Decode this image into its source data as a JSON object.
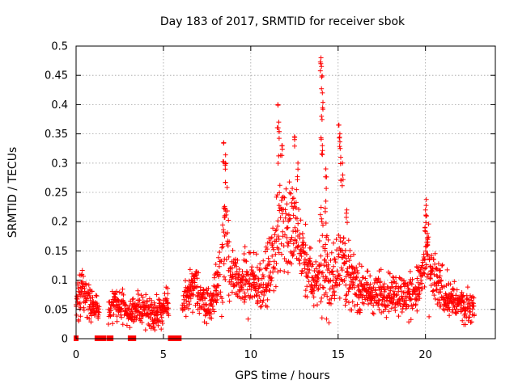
{
  "chart_data": {
    "type": "scatter",
    "title": "Day 183 of 2017, SRMTID for receiver sbok",
    "xlabel": "GPS time / hours",
    "ylabel": "SRMTID / TECUs",
    "xlim": [
      0,
      24
    ],
    "ylim": [
      0,
      0.5
    ],
    "xticks": [
      "0",
      "5",
      "10",
      "15",
      "20"
    ],
    "yticks": [
      "0",
      "0.05",
      "0.1",
      "0.15",
      "0.2",
      "0.25",
      "0.3",
      "0.35",
      "0.4",
      "0.45",
      "0.5"
    ],
    "grid": true,
    "marker": "+",
    "color": "#ff0000",
    "series": [
      {
        "name": "SRMTID",
        "envelope": [
          [
            0.0,
            0.055,
            0.03
          ],
          [
            0.2,
            0.07,
            0.04
          ],
          [
            0.35,
            0.09,
            0.05
          ],
          [
            0.5,
            0.08,
            0.04
          ],
          [
            0.8,
            0.06,
            0.03
          ],
          [
            1.1,
            0.055,
            0.03
          ],
          [
            1.3,
            0.05,
            0.02
          ],
          [
            1.9,
            0.05,
            0.025
          ],
          [
            2.3,
            0.055,
            0.03
          ],
          [
            2.8,
            0.05,
            0.03
          ],
          [
            3.1,
            0.045,
            0.025
          ],
          [
            3.5,
            0.05,
            0.03
          ],
          [
            3.9,
            0.05,
            0.03
          ],
          [
            4.4,
            0.045,
            0.03
          ],
          [
            4.9,
            0.05,
            0.03
          ],
          [
            5.2,
            0.055,
            0.03
          ],
          [
            6.1,
            0.06,
            0.03
          ],
          [
            6.5,
            0.075,
            0.04
          ],
          [
            6.8,
            0.09,
            0.05
          ],
          [
            7.1,
            0.07,
            0.04
          ],
          [
            7.5,
            0.06,
            0.03
          ],
          [
            7.8,
            0.06,
            0.03
          ],
          [
            8.1,
            0.1,
            0.05
          ],
          [
            8.4,
            0.15,
            0.1
          ],
          [
            8.55,
            0.2,
            0.15
          ],
          [
            8.8,
            0.12,
            0.06
          ],
          [
            9.2,
            0.09,
            0.05
          ],
          [
            9.6,
            0.1,
            0.05
          ],
          [
            10.0,
            0.09,
            0.05
          ],
          [
            10.4,
            0.09,
            0.05
          ],
          [
            10.8,
            0.1,
            0.05
          ],
          [
            11.2,
            0.12,
            0.06
          ],
          [
            11.5,
            0.18,
            0.1
          ],
          [
            11.7,
            0.23,
            0.13
          ],
          [
            12.0,
            0.18,
            0.09
          ],
          [
            12.3,
            0.2,
            0.1
          ],
          [
            12.6,
            0.17,
            0.09
          ],
          [
            12.9,
            0.15,
            0.07
          ],
          [
            13.2,
            0.12,
            0.06
          ],
          [
            13.5,
            0.1,
            0.05
          ],
          [
            13.8,
            0.09,
            0.05
          ],
          [
            14.0,
            0.15,
            0.12
          ],
          [
            14.3,
            0.12,
            0.08
          ],
          [
            14.6,
            0.09,
            0.05
          ],
          [
            14.9,
            0.12,
            0.07
          ],
          [
            15.2,
            0.16,
            0.1
          ],
          [
            15.5,
            0.11,
            0.06
          ],
          [
            15.8,
            0.1,
            0.05
          ],
          [
            16.2,
            0.085,
            0.04
          ],
          [
            16.6,
            0.08,
            0.04
          ],
          [
            17.0,
            0.075,
            0.04
          ],
          [
            17.4,
            0.075,
            0.04
          ],
          [
            17.8,
            0.08,
            0.04
          ],
          [
            18.2,
            0.08,
            0.04
          ],
          [
            18.6,
            0.075,
            0.04
          ],
          [
            19.0,
            0.07,
            0.04
          ],
          [
            19.4,
            0.08,
            0.04
          ],
          [
            19.8,
            0.1,
            0.05
          ],
          [
            20.0,
            0.14,
            0.08
          ],
          [
            20.3,
            0.11,
            0.06
          ],
          [
            20.7,
            0.09,
            0.05
          ],
          [
            21.1,
            0.08,
            0.04
          ],
          [
            21.5,
            0.065,
            0.035
          ],
          [
            21.9,
            0.06,
            0.03
          ],
          [
            22.3,
            0.055,
            0.03
          ],
          [
            22.8,
            0.055,
            0.03
          ]
        ],
        "gap_markers": [
          0.0,
          1.2,
          1.3,
          1.4,
          1.5,
          1.6,
          1.9,
          2.0,
          3.1,
          3.2,
          3.3,
          5.4,
          5.5,
          5.6,
          5.7,
          5.8,
          5.9
        ]
      }
    ],
    "peaks": [
      [
        8.45,
        0.335
      ],
      [
        8.55,
        0.3
      ],
      [
        8.5,
        0.226
      ],
      [
        11.55,
        0.4
      ],
      [
        11.6,
        0.37
      ],
      [
        11.8,
        0.33
      ],
      [
        12.5,
        0.345
      ],
      [
        12.7,
        0.3
      ],
      [
        14.02,
        0.48
      ],
      [
        14.05,
        0.465
      ],
      [
        14.1,
        0.42
      ],
      [
        14.05,
        0.38
      ],
      [
        14.1,
        0.33
      ],
      [
        14.3,
        0.29
      ],
      [
        14.3,
        0.235
      ],
      [
        15.05,
        0.365
      ],
      [
        15.1,
        0.35
      ],
      [
        15.15,
        0.31
      ],
      [
        15.25,
        0.3
      ],
      [
        15.5,
        0.22
      ],
      [
        20.05,
        0.238
      ],
      [
        20.0,
        0.22
      ],
      [
        20.1,
        0.18
      ]
    ]
  }
}
